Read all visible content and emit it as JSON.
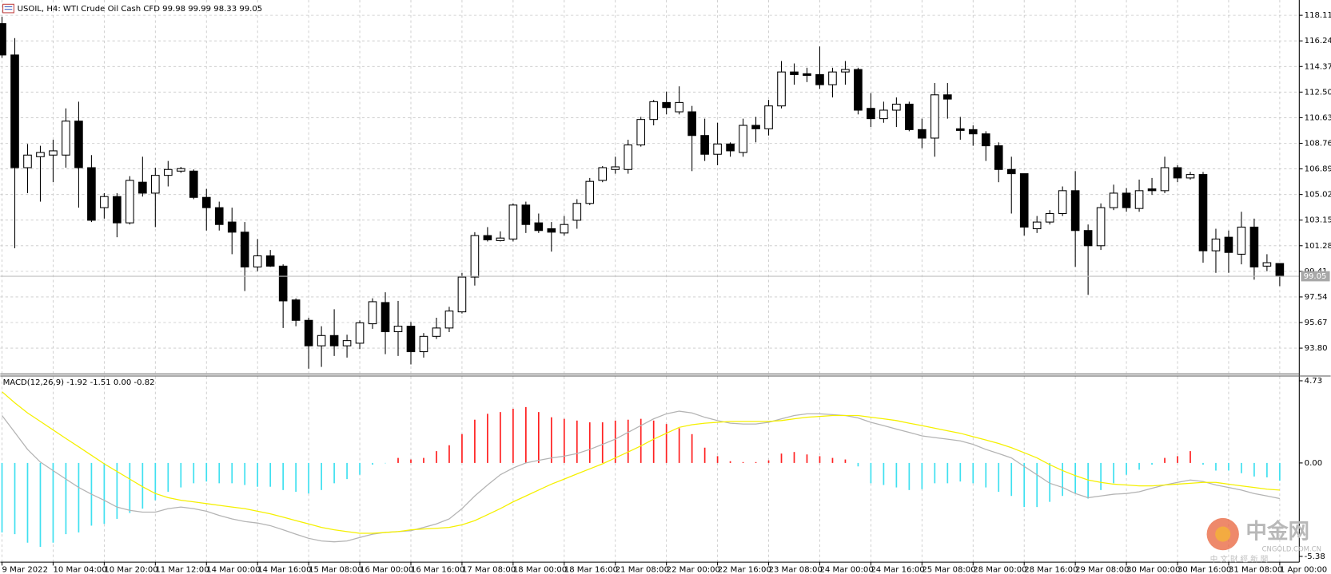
{
  "chart_data": [
    {
      "type": "candlestick",
      "title": "USOIL, H4:  WTI Crude Oil Cash CFD  99.98 99.99 98.33 99.05",
      "categories": [
        "9 Mar 2022",
        null,
        null,
        null,
        "10 Mar 04:00",
        null,
        null,
        null,
        "10 Mar 20:00",
        null,
        null,
        null,
        "11 Mar 12:00",
        null,
        null,
        null,
        "14 Mar 00:00",
        null,
        null,
        null,
        "14 Mar 16:00",
        null,
        null,
        null,
        "15 Mar 08:00",
        null,
        null,
        null,
        "16 Mar 00:00",
        null,
        null,
        null,
        "16 Mar 16:00",
        null,
        null,
        null,
        "17 Mar 08:00",
        null,
        null,
        null,
        "18 Mar 00:00",
        null,
        null,
        null,
        "18 Mar 16:00",
        null,
        null,
        null,
        "21 Mar 08:00",
        null,
        null,
        null,
        "22 Mar 00:00",
        null,
        null,
        null,
        "22 Mar 16:00",
        null,
        null,
        null,
        "23 Mar 08:00",
        null,
        null,
        null,
        "24 Mar 00:00",
        null,
        null,
        null,
        "24 Mar 16:00",
        null,
        null,
        null,
        "25 Mar 08:00",
        null,
        null,
        null,
        "28 Mar 00:00",
        null,
        null,
        null,
        "28 Mar 16:00",
        null,
        null,
        null,
        "29 Mar 08:00",
        null,
        null,
        null,
        "30 Mar 00:00",
        null,
        null,
        null,
        "30 Mar 16:00",
        null,
        null,
        null,
        "31 Mar 08:00",
        null,
        null,
        null,
        "1 Apr 00:00"
      ],
      "open": [
        117.5,
        115.21,
        106.98,
        107.78,
        107.9,
        107.9,
        110.38,
        106.98,
        104.06,
        104.87,
        102.95,
        105.92,
        105.12,
        106.42,
        106.73,
        106.73,
        104.81,
        104.06,
        103.01,
        102.27,
        99.73,
        100.54,
        99.79,
        97.32,
        95.83,
        93.97,
        94.72,
        93.97,
        94.16,
        95.58,
        97.13,
        95.0,
        95.4,
        93.54,
        94.66,
        95.27,
        96.45,
        98.99,
        102.02,
        101.65,
        101.77,
        104.25,
        102.95,
        102.52,
        102.21,
        103.14,
        104.37,
        106.05,
        106.85,
        106.85,
        108.64,
        110.5,
        111.74,
        111.06,
        111.06,
        109.33,
        107.96,
        108.71,
        108.09,
        110.07,
        109.82,
        111.49,
        113.97,
        113.84,
        113.78,
        113.04,
        113.97,
        114.15,
        111.31,
        110.56,
        111.18,
        111.62,
        109.76,
        109.14,
        112.3,
        109.82,
        109.76,
        109.45,
        108.58,
        106.85,
        106.54,
        102.52,
        103.01,
        103.63,
        105.3,
        102.39,
        101.28,
        104.06,
        105.12,
        104.0,
        105.43,
        105.3,
        106.98,
        106.23,
        106.48,
        100.91,
        101.9,
        100.66,
        102.64,
        99.79,
        99.98
      ],
      "high": [
        118.0,
        116.44,
        108.71,
        108.58,
        109.02,
        111.31,
        111.8,
        107.9,
        105.12,
        105.12,
        106.36,
        107.78,
        106.98,
        107.47,
        107.04,
        106.85,
        105.43,
        104.5,
        104.06,
        103.01,
        101.77,
        100.97,
        99.92,
        97.44,
        96.02,
        95.4,
        96.64,
        94.78,
        95.83,
        97.44,
        97.88,
        97.25,
        95.71,
        94.9,
        96.02,
        96.82,
        99.3,
        102.27,
        102.64,
        102.33,
        104.37,
        104.5,
        103.63,
        103.01,
        103.45,
        104.68,
        106.23,
        107.1,
        107.78,
        109.02,
        110.69,
        111.93,
        112.54,
        112.92,
        111.49,
        110.56,
        110.26,
        108.83,
        110.56,
        110.69,
        111.93,
        114.77,
        114.59,
        114.28,
        115.83,
        114.28,
        114.77,
        114.28,
        112.42,
        111.8,
        112.11,
        111.8,
        110.56,
        113.16,
        113.16,
        110.69,
        110.07,
        109.64,
        108.83,
        107.78,
        106.54,
        103.45,
        103.88,
        105.61,
        106.73,
        102.83,
        104.37,
        105.74,
        105.49,
        106.11,
        106.23,
        107.78,
        107.16,
        106.67,
        106.67,
        102.52,
        102.39,
        103.76,
        103.26,
        100.66,
        99.99
      ],
      "low": [
        115.0,
        101.09,
        105.12,
        104.5,
        105.92,
        106.98,
        104.06,
        103.01,
        103.26,
        101.9,
        102.83,
        104.87,
        102.64,
        105.61,
        106.6,
        104.68,
        102.39,
        102.39,
        100.66,
        97.97,
        99.42,
        99.73,
        95.27,
        95.4,
        92.3,
        92.43,
        93.23,
        93.11,
        93.73,
        95.21,
        93.36,
        93.23,
        92.61,
        93.11,
        94.47,
        94.97,
        96.33,
        98.37,
        101.59,
        101.59,
        101.59,
        102.21,
        102.21,
        100.85,
        102.02,
        102.52,
        104.25,
        105.92,
        106.54,
        106.54,
        108.52,
        110.07,
        110.87,
        110.87,
        106.73,
        107.47,
        107.16,
        107.78,
        107.78,
        108.83,
        109.33,
        111.31,
        113.04,
        113.23,
        112.73,
        112.11,
        113.04,
        110.87,
        109.95,
        110.26,
        109.95,
        109.64,
        108.4,
        107.78,
        110.56,
        109.02,
        108.58,
        107.47,
        105.92,
        103.63,
        102.02,
        102.21,
        102.83,
        103.45,
        99.73,
        97.69,
        100.97,
        103.88,
        103.76,
        103.76,
        104.99,
        105.12,
        105.92,
        106.11,
        100.04,
        99.3,
        99.3,
        99.92,
        98.8,
        99.42,
        98.33
      ],
      "close": [
        115.21,
        106.98,
        107.9,
        108.09,
        108.21,
        110.38,
        106.98,
        103.14,
        104.87,
        102.95,
        106.05,
        105.12,
        106.42,
        106.85,
        106.91,
        104.81,
        104.06,
        102.83,
        102.27,
        99.73,
        100.54,
        99.79,
        97.25,
        95.83,
        93.97,
        94.72,
        93.97,
        94.35,
        95.65,
        97.19,
        95.0,
        95.4,
        93.54,
        94.66,
        95.27,
        96.51,
        98.99,
        102.02,
        101.71,
        101.84,
        104.25,
        102.83,
        102.39,
        102.27,
        102.83,
        104.37,
        105.98,
        106.98,
        107.04,
        108.64,
        110.5,
        111.8,
        111.37,
        111.74,
        109.33,
        107.96,
        108.71,
        108.21,
        110.07,
        109.82,
        111.49,
        113.97,
        113.78,
        113.72,
        113.04,
        113.97,
        114.15,
        111.18,
        110.56,
        111.18,
        111.62,
        109.76,
        109.14,
        112.3,
        111.99,
        109.7,
        109.45,
        108.58,
        106.85,
        106.54,
        102.64,
        103.01,
        103.63,
        105.3,
        102.39,
        101.28,
        104.06,
        105.12,
        104.06,
        105.3,
        105.3,
        106.98,
        106.23,
        106.48,
        100.91,
        101.77,
        100.79,
        102.64,
        99.73,
        100.04,
        99.05
      ],
      "up_color": "#ffffff",
      "down_color": "#000000",
      "last_price": 99.05,
      "price_line_color": "#c0c0c0",
      "ylim": [
        91.98,
        119.04
      ],
      "yticks": [
        {
          "value": 93.8,
          "label": "93.80"
        },
        95.67,
        97.54,
        99.41,
        101.28,
        103.15,
        105.02,
        106.89,
        108.76,
        110.63,
        {
          "value": 112.5,
          "label": "112.50"
        },
        114.37,
        116.24,
        118.11
      ],
      "grid": true,
      "grid_color": "#c8c8c8"
    },
    {
      "type": "macd",
      "title": "MACD(12,26,9) -1.92 -1.51 0.00 -0.82",
      "ylim": [
        -5.71,
        4.98
      ],
      "yticks": [
        -5.38,
        {
          "value": 0,
          "label": "0.00"
        },
        4.73
      ],
      "histogram": {
        "up_color": "#ff2020",
        "down_color": "#3fe0f0",
        "values": [
          -4.0,
          -4.1,
          -4.59,
          -4.83,
          -4.59,
          -4.1,
          -4.0,
          -3.61,
          -3.51,
          -3.22,
          -2.88,
          -2.63,
          -2.15,
          -1.66,
          -1.41,
          -1.17,
          -1.07,
          -1.17,
          -1.17,
          -1.27,
          -1.37,
          -1.37,
          -1.56,
          -1.66,
          -1.76,
          -1.56,
          -1.17,
          -0.93,
          -0.68,
          -0.1,
          -0.02,
          0.29,
          0.2,
          0.29,
          0.68,
          1.02,
          1.66,
          2.49,
          2.83,
          2.93,
          3.12,
          3.22,
          2.93,
          2.63,
          2.54,
          2.44,
          2.34,
          2.34,
          2.44,
          2.49,
          2.54,
          2.44,
          2.24,
          2.0,
          1.66,
          0.88,
          0.39,
          0.1,
          0.05,
          0.05,
          0.15,
          0.54,
          0.63,
          0.49,
          0.39,
          0.29,
          0.2,
          -0.2,
          -1.17,
          -1.27,
          -1.41,
          -1.56,
          -1.51,
          -1.17,
          -1.17,
          -1.07,
          -1.17,
          -1.41,
          -1.66,
          -1.9,
          -2.54,
          -2.54,
          -2.24,
          -1.9,
          -1.76,
          -2.05,
          -1.56,
          -1.17,
          -0.68,
          -0.39,
          -0.1,
          0.29,
          0.39,
          0.68,
          -0.1,
          -0.44,
          -0.44,
          -0.59,
          -0.78,
          -0.83,
          -1.02
        ]
      },
      "series": [
        {
          "color": "#b4b4b4",
          "values": [
            2.73,
            1.76,
            0.78,
            0.05,
            -0.44,
            -0.93,
            -1.41,
            -1.8,
            -2.15,
            -2.54,
            -2.73,
            -2.83,
            -2.83,
            -2.63,
            -2.54,
            -2.63,
            -2.78,
            -3.02,
            -3.22,
            -3.37,
            -3.46,
            -3.61,
            -3.85,
            -4.1,
            -4.34,
            -4.49,
            -4.54,
            -4.49,
            -4.29,
            -4.1,
            -4.0,
            -3.95,
            -3.9,
            -3.71,
            -3.51,
            -3.22,
            -2.63,
            -1.9,
            -1.27,
            -0.68,
            -0.29,
            0.0,
            0.15,
            0.29,
            0.39,
            0.54,
            0.78,
            1.07,
            1.37,
            1.76,
            2.15,
            2.54,
            2.83,
            2.98,
            2.88,
            2.63,
            2.44,
            2.29,
            2.24,
            2.24,
            2.34,
            2.54,
            2.73,
            2.83,
            2.83,
            2.78,
            2.73,
            2.59,
            2.34,
            2.15,
            1.95,
            1.76,
            1.56,
            1.46,
            1.37,
            1.27,
            1.07,
            0.78,
            0.54,
            0.29,
            -0.2,
            -0.68,
            -1.17,
            -1.41,
            -1.76,
            -2.0,
            -1.9,
            -1.8,
            -1.76,
            -1.66,
            -1.46,
            -1.27,
            -1.12,
            -0.98,
            -1.07,
            -1.27,
            -1.41,
            -1.56,
            -1.76,
            -1.9,
            -2.05
          ]
        },
        {
          "color": "#f5f000",
          "values": [
            4.1,
            3.46,
            2.88,
            2.39,
            1.9,
            1.41,
            0.93,
            0.44,
            -0.05,
            -0.49,
            -0.93,
            -1.37,
            -1.76,
            -2.0,
            -2.15,
            -2.24,
            -2.34,
            -2.44,
            -2.54,
            -2.63,
            -2.78,
            -2.93,
            -3.12,
            -3.32,
            -3.51,
            -3.71,
            -3.85,
            -3.95,
            -4.05,
            -4.05,
            -4.0,
            -3.95,
            -3.85,
            -3.8,
            -3.76,
            -3.71,
            -3.56,
            -3.32,
            -2.98,
            -2.63,
            -2.24,
            -1.9,
            -1.56,
            -1.22,
            -0.93,
            -0.63,
            -0.34,
            -0.05,
            0.29,
            0.63,
            0.98,
            1.37,
            1.71,
            2.05,
            2.2,
            2.29,
            2.34,
            2.39,
            2.39,
            2.39,
            2.39,
            2.44,
            2.54,
            2.63,
            2.68,
            2.73,
            2.73,
            2.73,
            2.63,
            2.54,
            2.44,
            2.29,
            2.15,
            2.0,
            1.85,
            1.71,
            1.51,
            1.32,
            1.12,
            0.88,
            0.59,
            0.29,
            -0.1,
            -0.44,
            -0.73,
            -0.98,
            -1.12,
            -1.22,
            -1.27,
            -1.32,
            -1.32,
            -1.27,
            -1.22,
            -1.17,
            -1.12,
            -1.12,
            -1.22,
            -1.32,
            -1.41,
            -1.51,
            -1.56
          ]
        }
      ]
    }
  ],
  "watermark": {
    "name": "中金网",
    "site": "CNGOLD.COM.CN",
    "tagline": "中 文 財 經 新 聞"
  }
}
